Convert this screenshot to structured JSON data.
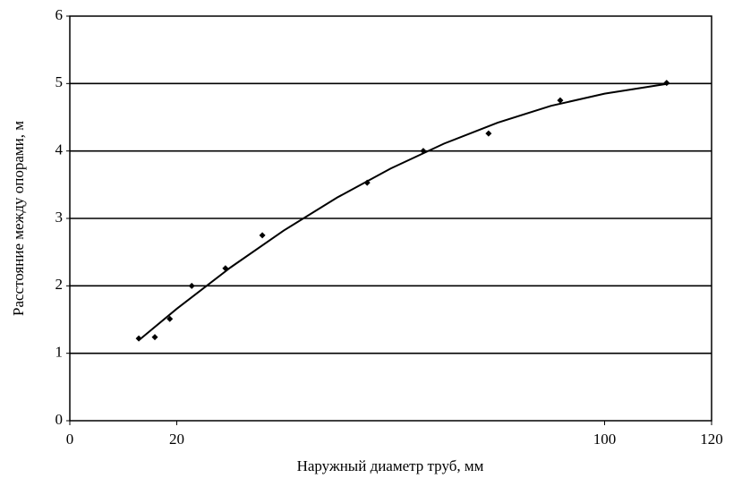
{
  "chart_data": {
    "type": "scatter",
    "xlabel": "Наружный диаметр труб, мм",
    "ylabel": "Расстояние между опорами, м",
    "series": [
      {
        "color": "#000000",
        "marker": "diamond",
        "x": [
          12.9,
          15.9,
          18.7,
          22.8,
          29.1,
          36.0,
          55.6,
          66.1,
          78.3,
          91.7,
          111.6
        ],
        "values": [
          1.22,
          1.24,
          1.51,
          2.0,
          2.26,
          2.75,
          3.53,
          4.0,
          4.26,
          4.75,
          5.01
        ]
      },
      {
        "color": "#000000",
        "line": true,
        "x": [
          13,
          20,
          30,
          40,
          50,
          60,
          70,
          80,
          90,
          100,
          112
        ],
        "values": [
          1.2,
          1.66,
          2.27,
          2.82,
          3.31,
          3.74,
          4.11,
          4.42,
          4.67,
          4.85,
          5.0
        ]
      }
    ],
    "xlim": [
      0,
      120
    ],
    "xticks": [
      0,
      20,
      100,
      120
    ],
    "ylim": [
      0,
      6
    ],
    "yticks": [
      0,
      1,
      2,
      3,
      4,
      5,
      6
    ],
    "grid": "y"
  }
}
